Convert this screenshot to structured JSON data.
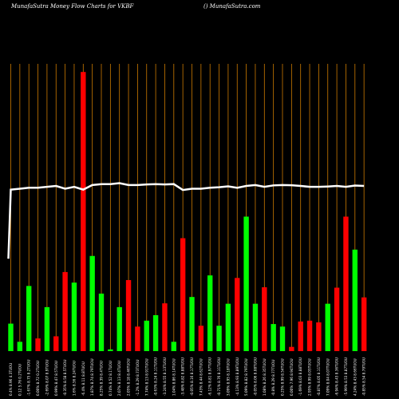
{
  "header": {
    "title": "MunafaSutra  Money Flow  Charts for VKBF",
    "site": "() MunafaSutra.com"
  },
  "chart_data": {
    "type": "bar",
    "colors": {
      "up": "#00ff00",
      "down": "#ff0000",
      "line": "#ffffff",
      "grid": "#cc7a00",
      "background": "#000000"
    },
    "bars": [
      {
        "color": "green",
        "value": 6.5
      },
      {
        "color": "green",
        "value": 2.2
      },
      {
        "color": "green",
        "value": 15.4
      },
      {
        "color": "red",
        "value": 3.0
      },
      {
        "color": "green",
        "value": 10.4
      },
      {
        "color": "red",
        "value": 3.5
      },
      {
        "color": "red",
        "value": 18.7
      },
      {
        "color": "green",
        "value": 16.2
      },
      {
        "color": "red",
        "value": 66.0
      },
      {
        "color": "green",
        "value": 22.5
      },
      {
        "color": "green",
        "value": 13.6
      },
      {
        "color": "green",
        "value": 0.4
      },
      {
        "color": "green",
        "value": 10.4
      },
      {
        "color": "red",
        "value": 16.8
      },
      {
        "color": "red",
        "value": 5.8
      },
      {
        "color": "green",
        "value": 7.2
      },
      {
        "color": "green",
        "value": 8.5
      },
      {
        "color": "red",
        "value": 11.3
      },
      {
        "color": "green",
        "value": 2.2
      },
      {
        "color": "red",
        "value": 26.7
      },
      {
        "color": "green",
        "value": 12.8
      },
      {
        "color": "red",
        "value": 6.0
      },
      {
        "color": "green",
        "value": 17.9
      },
      {
        "color": "green",
        "value": 6.0
      },
      {
        "color": "green",
        "value": 11.2
      },
      {
        "color": "red",
        "value": 17.3
      },
      {
        "color": "green",
        "value": 31.8
      },
      {
        "color": "green",
        "value": 11.2
      },
      {
        "color": "red",
        "value": 15.1
      },
      {
        "color": "green",
        "value": 6.4
      },
      {
        "color": "green",
        "value": 5.8
      },
      {
        "color": "red",
        "value": 1.0
      },
      {
        "color": "red",
        "value": 7.0
      },
      {
        "color": "red",
        "value": 7.2
      },
      {
        "color": "red",
        "value": 6.8
      },
      {
        "color": "green",
        "value": 11.2
      },
      {
        "color": "red",
        "value": 15.0
      },
      {
        "color": "red",
        "value": 31.8
      },
      {
        "color": "green",
        "value": 24.0
      },
      {
        "color": "red",
        "value": 12.7
      }
    ],
    "line_values": [
      68.0,
      68.5,
      69.0,
      69.0,
      69.5,
      70.0,
      68.5,
      69.5,
      68.0,
      70.5,
      71.0,
      71.0,
      71.5,
      70.5,
      70.5,
      70.8,
      71.0,
      70.8,
      71.0,
      67.8,
      68.5,
      68.5,
      69.0,
      69.3,
      69.8,
      69.0,
      70.0,
      70.5,
      69.5,
      70.3,
      70.5,
      70.4,
      70.0,
      69.5,
      69.5,
      69.7,
      70.0,
      69.5,
      70.2,
      70.0
    ],
    "line_start": 46.0,
    "x_labels": [
      "0.4% 8.96 4.3TUOU",
      "0.12 5.76 0.2TUOU",
      "-1.67% 8.75 8.2TUOU",
      "0.00% 8.72 0.2TUOU",
      "-2.69% 8.07 8.9TUOU",
      "0.99% 8.47 8.5TUOU",
      "-0.35% 8.58 8.5TUOU",
      "1.6% 8.56 8.24TUOU",
      "-6.4% 8.11 8.8TUOU",
      "1.87% 8.74 8.79TUOU",
      "8.25% 8.39 8.4TUOU",
      "0.74% 8.52 8.1TUOU",
      "2.07% 8.13 8.4TUOU",
      "2.05% 8.18 8.46TUOU",
      "-1.2% 8.29 8.73TUOU",
      "7.74% 8.13 8.91TUOU",
      "-0.63% 8.24 8.11TUOU",
      "-3.24% 8.55 8.13TUOU",
      "1.04% 8.86 8.14TUOU",
      "-3.48% 8.82 8.88TUOU",
      "-0.05% 8.16 8.17TUOU",
      "7.43% 8.44 8.62TUOU",
      "-6.12% 8.81 8.97TUOU",
      "-0.71% 8.76 8.11TUOU",
      "3.09% 8.95 8.18TUOU",
      "-4.13% 8.93 8.89TUOU",
      "5.09% 8.82 8.79TUOU",
      "-0.05% 8.06 8.08TUOU",
      "1.08% 8.26 8.35TUOU",
      "-0.8% 8.29 8.77TUOU",
      "0.25% 8.99 8.54TUOU",
      "0.00% 7.96 8.94TUOU",
      "-1.69% 8.03 8.88TUOU",
      "2.95% 8.99 8.05TUOU",
      "-0.87% 8.05 8.11TUOU",
      "7.09% 8.04 8.07TUOU",
      "-6.94% 8.43 8.36TUOU",
      "-5.99% 8.53 8.87TUOU",
      "4.24% 8.43 8.66TUOU",
      "-0.85% 8.54 8.79TUOU"
    ]
  }
}
